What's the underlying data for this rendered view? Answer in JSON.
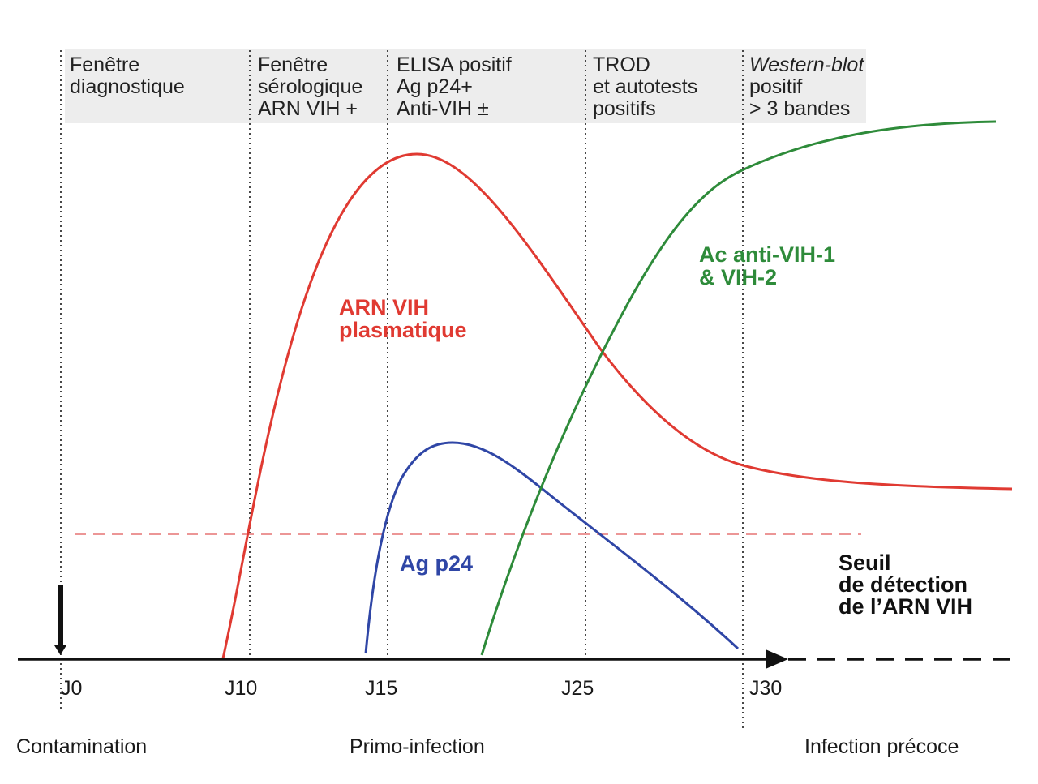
{
  "windows": [
    {
      "lines": [
        {
          "text": "Fenêtre",
          "color": "#222222"
        },
        {
          "text": "diagnostique",
          "color": "#222222"
        }
      ]
    },
    {
      "lines": [
        {
          "text": "Fenêtre",
          "color": "#222222"
        },
        {
          "text": "sérologique",
          "color": "#222222"
        },
        {
          "text": "ARN VIH +",
          "color": "#e03a32"
        }
      ]
    },
    {
      "lines": [
        {
          "text": "ELISA positif",
          "color": "#222222"
        },
        {
          "text": "Ag p24+",
          "color": "#2f46a6"
        },
        {
          "text": "Anti-VIH ±",
          "color": "#2e8b3a"
        }
      ]
    },
    {
      "lines": [
        {
          "text": "TROD",
          "color": "#222222"
        },
        {
          "text": "et autotests",
          "color": "#222222"
        },
        {
          "text": "positifs",
          "color": "#222222"
        }
      ]
    },
    {
      "lines": [
        {
          "text": "Western-blot",
          "color": "#222222",
          "italic": true
        },
        {
          "text": "positif",
          "color": "#222222"
        },
        {
          "text": "> 3 bandes",
          "color": "#2e8b3a"
        }
      ]
    }
  ],
  "curves": {
    "arn": {
      "label_lines": [
        "ARN VIH",
        "plasmatique"
      ],
      "color": "#e03a32"
    },
    "p24": {
      "label_lines": [
        "Ag p24"
      ],
      "color": "#2f46a6"
    },
    "ac": {
      "label_lines": [
        "Ac anti-VIH-1",
        "& VIH-2"
      ],
      "color": "#2e8b3a"
    }
  },
  "threshold": {
    "label_lines": [
      "Seuil",
      "de détection",
      "de l’ARN VIH"
    ],
    "color": "#e03a32"
  },
  "axis": {
    "ticks": [
      "J0",
      "J10",
      "J15",
      "J25",
      "J30"
    ]
  },
  "phases": {
    "contamination": "Contamination",
    "primo": "Primo-infection",
    "precoce": "Infection précoce"
  }
}
